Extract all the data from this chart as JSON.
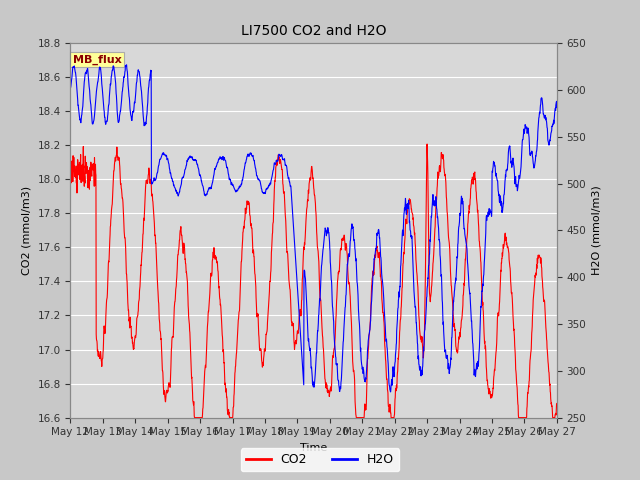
{
  "title": "LI7500 CO2 and H2O",
  "xlabel": "Time",
  "ylabel_left": "CO2 (mmol/m3)",
  "ylabel_right": "H2O (mmol/m3)",
  "annotation_text": "MB_flux",
  "annotation_color": "#8B0000",
  "annotation_bg": "#FFFF99",
  "annotation_border": "#AAAAAA",
  "co2_color": "#FF0000",
  "h2o_color": "#0000FF",
  "co2_ylim": [
    16.6,
    18.8
  ],
  "h2o_ylim": [
    250,
    650
  ],
  "co2_yticks": [
    16.6,
    16.8,
    17.0,
    17.2,
    17.4,
    17.6,
    17.8,
    18.0,
    18.2,
    18.4,
    18.6,
    18.8
  ],
  "h2o_yticks": [
    250,
    300,
    350,
    400,
    450,
    500,
    550,
    600,
    650
  ],
  "x_tick_labels": [
    "May 12",
    "May 13",
    "May 14",
    "May 15",
    "May 16",
    "May 17",
    "May 18",
    "May 19",
    "May 20",
    "May 21",
    "May 22",
    "May 23",
    "May 24",
    "May 25",
    "May 26",
    "May 27"
  ],
  "outer_bg_color": "#C8C8C8",
  "plot_bg_color": "#D8D8D8",
  "grid_color": "#FFFFFF",
  "linewidth": 0.8,
  "n_points": 2000,
  "seed": 42
}
